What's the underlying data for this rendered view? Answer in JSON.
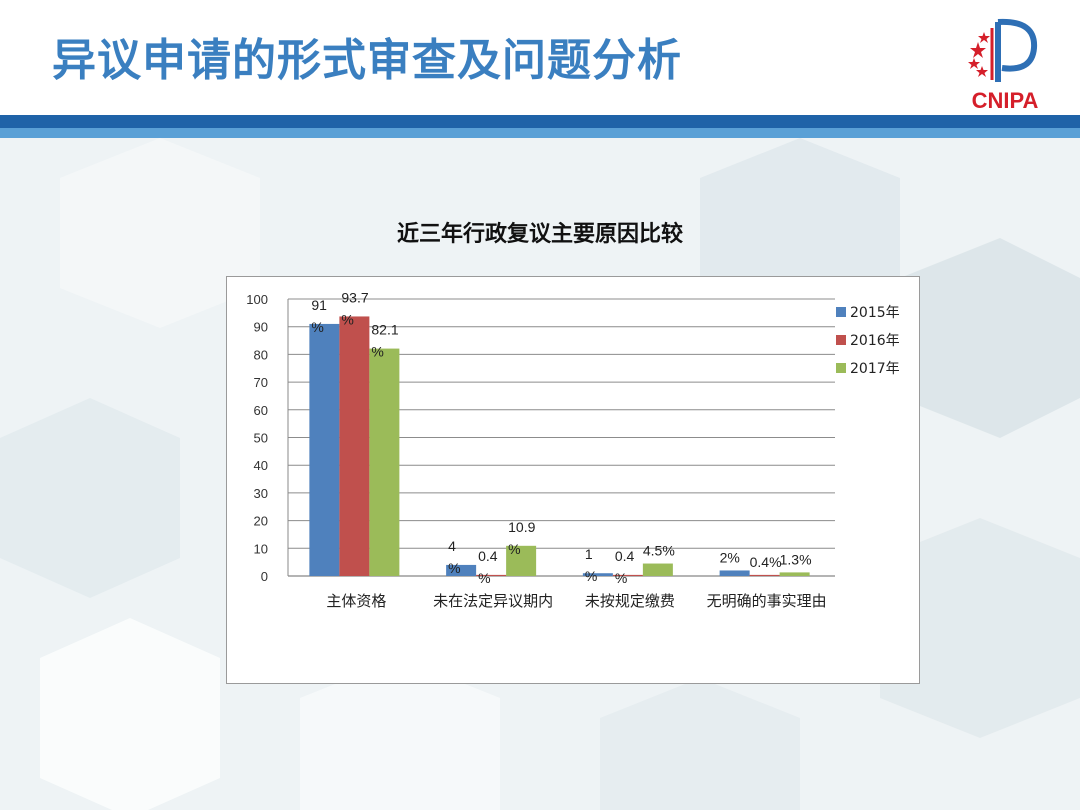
{
  "header": {
    "title": "异议申请的形式审查及问题分析",
    "logo_text": "CNIPA"
  },
  "colors": {
    "title": "#3a7fc0",
    "band_dark": "#1f63a8",
    "band_light": "#5aa0d6",
    "series": [
      "#4f81bd",
      "#c0504d",
      "#9bbb59"
    ]
  },
  "chart_data": {
    "type": "bar",
    "title": "近三年行政复议主要原因比较",
    "categories": [
      "主体资格",
      "未在法定异议期内",
      "未按规定缴费",
      "无明确的事实理由"
    ],
    "series": [
      {
        "name": "2015年",
        "values": [
          91,
          4,
          1,
          2
        ],
        "labels": [
          "91\n%",
          "4\n%",
          "1\n%",
          "2%"
        ]
      },
      {
        "name": "2016年",
        "values": [
          93.7,
          0.4,
          0.4,
          0.4
        ],
        "labels": [
          "93.7\n%",
          "0.4\n%",
          "0.4\n%",
          "0.4%"
        ]
      },
      {
        "name": "2017年",
        "values": [
          82.1,
          10.9,
          4.5,
          1.3
        ],
        "labels": [
          "82.1\n%",
          "10.9\n%",
          "4.5%",
          "1.3%"
        ]
      }
    ],
    "ylim": [
      0,
      100
    ],
    "yticks": [
      0,
      10,
      20,
      30,
      40,
      50,
      60,
      70,
      80,
      90,
      100
    ],
    "grid": true,
    "legend": "right"
  }
}
